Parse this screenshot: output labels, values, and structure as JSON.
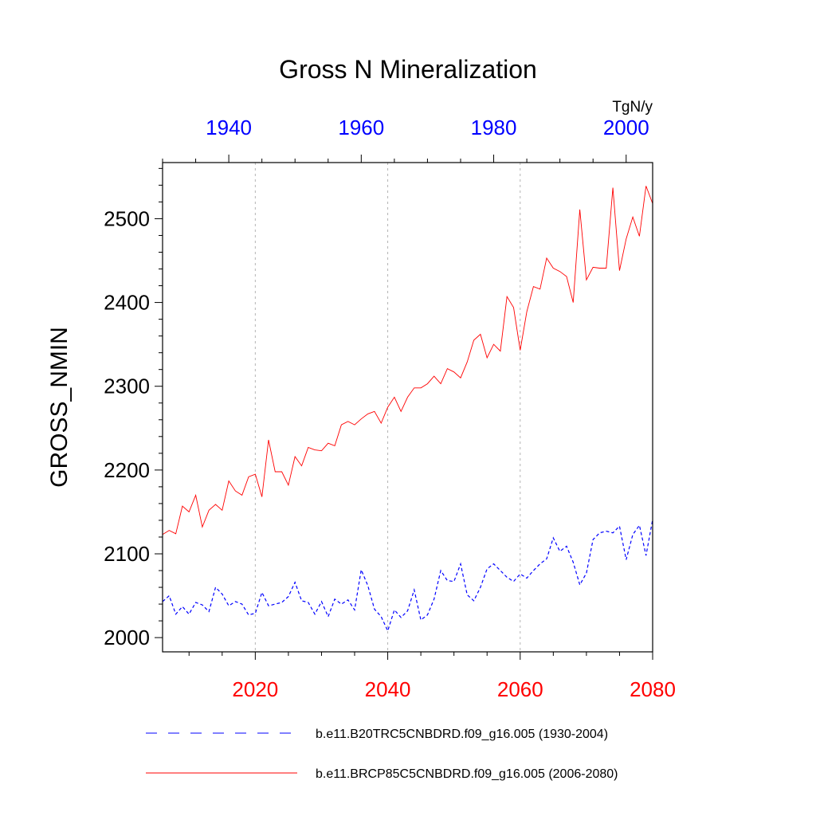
{
  "chart_data": {
    "type": "line",
    "title": "Gross N Mineralization",
    "ylabel": "GROSS_NMIN",
    "units": "TgN/y",
    "ylim": [
      1983,
      2567
    ],
    "yticks": [
      "2000",
      "2100",
      "2200",
      "2300",
      "2400",
      "2500"
    ],
    "x_bottom": {
      "range": [
        2006,
        2080
      ],
      "ticks": [
        "2020",
        "2040",
        "2060",
        "2080"
      ],
      "color": "#ff0000"
    },
    "x_top": {
      "range": [
        1930,
        2004
      ],
      "ticks": [
        "1940",
        "1960",
        "1980",
        "2000"
      ],
      "color": "#0000ff"
    },
    "grid_vertical": [
      2020,
      2040,
      2060
    ],
    "series": [
      {
        "name": "b.e11.BRCP85C5CNBDRD.f09_g16.005 (2006-2080)",
        "axis": "bottom",
        "color": "#ff0000",
        "style": "solid",
        "x": [
          2006,
          2007,
          2008,
          2009,
          2010,
          2011,
          2012,
          2013,
          2014,
          2015,
          2016,
          2017,
          2018,
          2019,
          2020,
          2021,
          2022,
          2023,
          2024,
          2025,
          2026,
          2027,
          2028,
          2029,
          2030,
          2031,
          2032,
          2033,
          2034,
          2035,
          2036,
          2037,
          2038,
          2039,
          2040,
          2041,
          2042,
          2043,
          2044,
          2045,
          2046,
          2047,
          2048,
          2049,
          2050,
          2051,
          2052,
          2053,
          2054,
          2055,
          2056,
          2057,
          2058,
          2059,
          2060,
          2061,
          2062,
          2063,
          2064,
          2065,
          2066,
          2067,
          2068,
          2069,
          2070,
          2071,
          2072,
          2073,
          2074,
          2075,
          2076,
          2077,
          2078,
          2079,
          2080
        ],
        "values": [
          2123,
          2128,
          2124,
          2157,
          2150,
          2170,
          2132,
          2152,
          2159,
          2152,
          2187,
          2175,
          2170,
          2192,
          2195,
          2168,
          2236,
          2198,
          2198,
          2182,
          2216,
          2205,
          2227,
          2224,
          2223,
          2232,
          2229,
          2254,
          2258,
          2254,
          2261,
          2267,
          2270,
          2256,
          2275,
          2287,
          2270,
          2287,
          2298,
          2298,
          2303,
          2312,
          2303,
          2321,
          2317,
          2310,
          2329,
          2355,
          2362,
          2334,
          2350,
          2342,
          2407,
          2394,
          2343,
          2389,
          2419,
          2416,
          2453,
          2441,
          2437,
          2431,
          2400,
          2511,
          2427,
          2442,
          2441,
          2441,
          2537,
          2438,
          2476,
          2502,
          2479,
          2539,
          2518
        ]
      },
      {
        "name": "b.e11.B20TRC5CNBDRD.f09_g16.005 (1930-2004)",
        "axis": "top",
        "color": "#0000ff",
        "style": "dashed",
        "x": [
          1930,
          1931,
          1932,
          1933,
          1934,
          1935,
          1936,
          1937,
          1938,
          1939,
          1940,
          1941,
          1942,
          1943,
          1944,
          1945,
          1946,
          1947,
          1948,
          1949,
          1950,
          1951,
          1952,
          1953,
          1954,
          1955,
          1956,
          1957,
          1958,
          1959,
          1960,
          1961,
          1962,
          1963,
          1964,
          1965,
          1966,
          1967,
          1968,
          1969,
          1970,
          1971,
          1972,
          1973,
          1974,
          1975,
          1976,
          1977,
          1978,
          1979,
          1980,
          1981,
          1982,
          1983,
          1984,
          1985,
          1986,
          1987,
          1988,
          1989,
          1990,
          1991,
          1992,
          1993,
          1994,
          1995,
          1996,
          1997,
          1998,
          1999,
          2000,
          2001,
          2002,
          2003,
          2004
        ],
        "values": [
          2043,
          2050,
          2028,
          2037,
          2028,
          2042,
          2039,
          2031,
          2060,
          2052,
          2038,
          2043,
          2040,
          2027,
          2029,
          2054,
          2038,
          2040,
          2042,
          2049,
          2066,
          2044,
          2042,
          2028,
          2043,
          2025,
          2046,
          2040,
          2045,
          2033,
          2081,
          2062,
          2034,
          2025,
          2008,
          2033,
          2024,
          2032,
          2057,
          2021,
          2027,
          2046,
          2080,
          2068,
          2067,
          2088,
          2051,
          2044,
          2060,
          2082,
          2088,
          2080,
          2072,
          2067,
          2076,
          2071,
          2080,
          2088,
          2094,
          2119,
          2103,
          2109,
          2090,
          2063,
          2077,
          2117,
          2125,
          2127,
          2125,
          2133,
          2093,
          2123,
          2134,
          2098,
          2141
        ]
      }
    ]
  }
}
